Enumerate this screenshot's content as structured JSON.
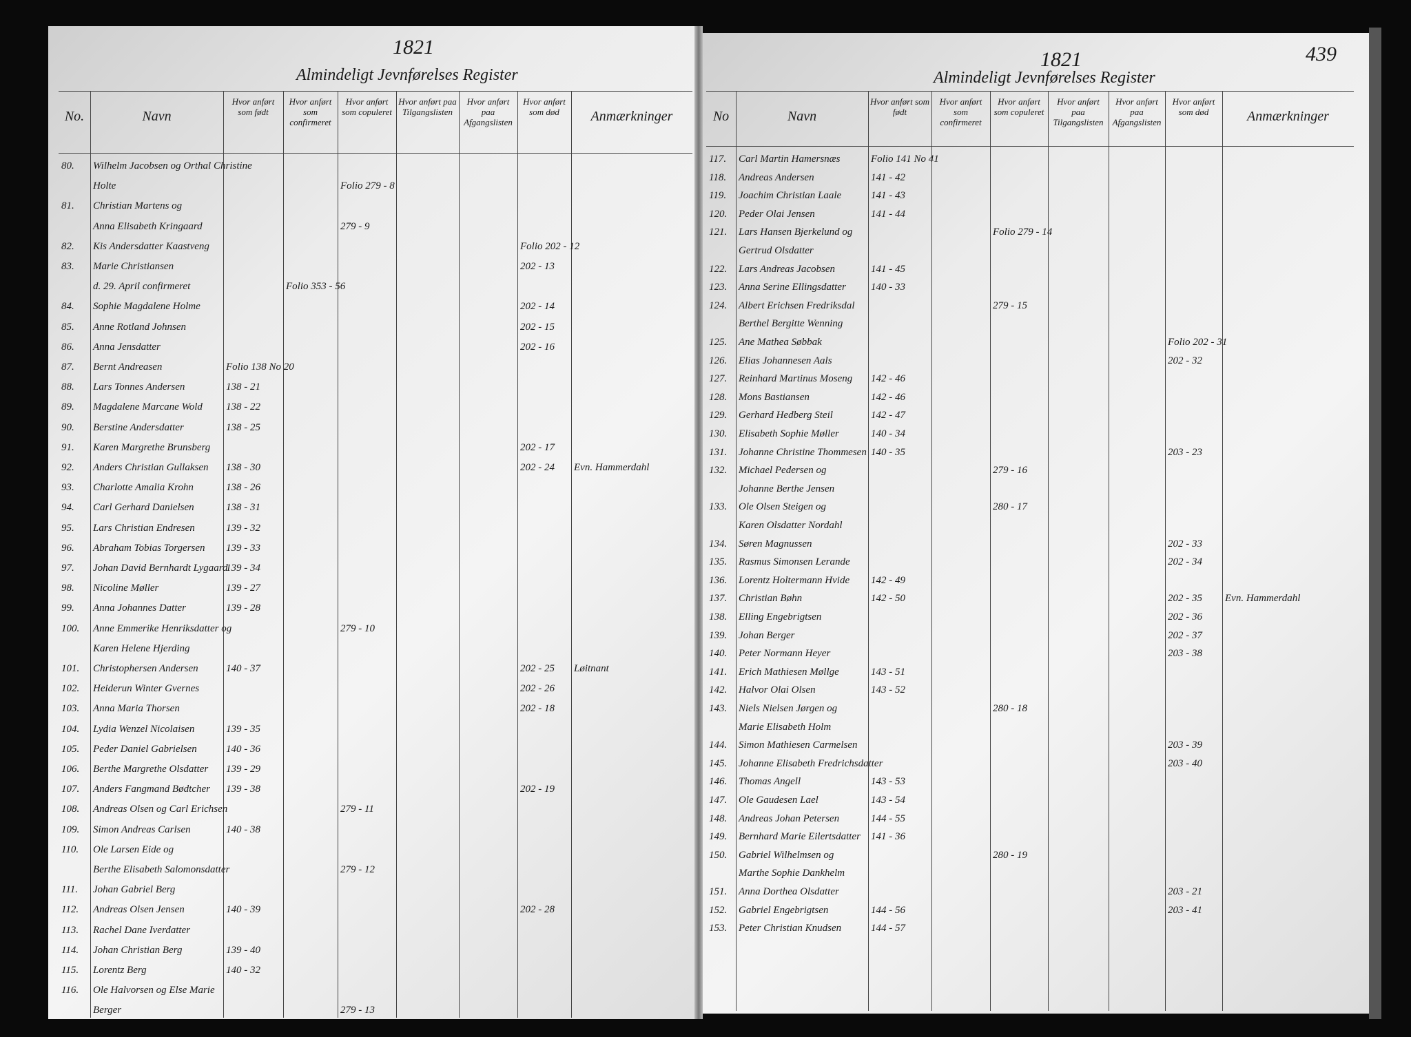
{
  "pages": [
    {
      "year": "1821",
      "title": "Almindeligt Jevnførelses Register",
      "headers": [
        "No.",
        "Navn",
        "Hvor anført som født",
        "Hvor anført som confirmeret",
        "Hvor anført som copuleret",
        "Hvor anført paa Tilgangslisten",
        "Hvor anført paa Afgangslisten",
        "Hvor anført som død",
        "Anmærkninger"
      ],
      "rows": [
        {
          "no": "80.",
          "name": "Wilhelm Jacobsen og Orthal Christine"
        },
        {
          "name": "Holte",
          "cop": "Folio 279 - 8"
        },
        {
          "no": "81.",
          "name": "Christian Martens og"
        },
        {
          "name": "Anna Elisabeth Kringaard",
          "cop": "279 - 9"
        },
        {
          "no": "82.",
          "name": "Kis Andersdatter Kaastveng",
          "dead": "Folio 202 - 12"
        },
        {
          "no": "83.",
          "name": "Marie Christiansen",
          "dead": "202 - 13"
        },
        {
          "name": "d. 29. April confirmeret",
          "conf": "Folio 353 - 56"
        },
        {
          "no": "84.",
          "name": "Sophie Magdalene Holme",
          "dead": "202 - 14"
        },
        {
          "no": "85.",
          "name": "Anne Rotland Johnsen",
          "dead": "202 - 15"
        },
        {
          "no": "86.",
          "name": "Anna Jensdatter",
          "dead": "202 - 16"
        },
        {
          "no": "87.",
          "name": "Bernt Andreasen",
          "born": "Folio 138 No 20"
        },
        {
          "no": "88.",
          "name": "Lars Tonnes Andersen",
          "born": "138 - 21"
        },
        {
          "no": "89.",
          "name": "Magdalene Marcane Wold",
          "born": "138 - 22"
        },
        {
          "no": "90.",
          "name": "Berstine Andersdatter",
          "born": "138 - 25"
        },
        {
          "no": "91.",
          "name": "Karen Margrethe Brunsberg",
          "dead": "202 - 17"
        },
        {
          "no": "92.",
          "name": "Anders Christian Gullaksen",
          "born": "138 - 30",
          "dead": "202 - 24",
          "note": "Evn. Hammerdahl"
        },
        {
          "no": "93.",
          "name": "Charlotte Amalia Krohn",
          "born": "138 - 26"
        },
        {
          "no": "94.",
          "name": "Carl Gerhard Danielsen",
          "born": "138 - 31"
        },
        {
          "no": "95.",
          "name": "Lars Christian Endresen",
          "born": "139 - 32"
        },
        {
          "no": "96.",
          "name": "Abraham Tobias Torgersen",
          "born": "139 - 33"
        },
        {
          "no": "97.",
          "name": "Johan David Bernhardt Lygaard",
          "born": "139 - 34"
        },
        {
          "no": "98.",
          "name": "Nicoline Møller",
          "born": "139 - 27"
        },
        {
          "no": "99.",
          "name": "Anna Johannes Datter",
          "born": "139 - 28"
        },
        {
          "no": "100.",
          "name": "Anne Emmerike Henriksdatter og",
          "cop": "279 - 10"
        },
        {
          "name": "Karen Helene Hjerding"
        },
        {
          "no": "101.",
          "name": "Christophersen Andersen",
          "born": "140 - 37",
          "dead": "202 - 25",
          "note": "Løitnant"
        },
        {
          "no": "102.",
          "name": "Heiderun Winter Gvernes",
          "dead": "202 - 26"
        },
        {
          "no": "103.",
          "name": "Anna Maria Thorsen",
          "dead": "202 - 18"
        },
        {
          "no": "104.",
          "name": "Lydia Wenzel Nicolaisen",
          "born": "139 - 35"
        },
        {
          "no": "105.",
          "name": "Peder Daniel Gabrielsen",
          "born": "140 - 36"
        },
        {
          "no": "106.",
          "name": "Berthe Margrethe Olsdatter",
          "born": "139 - 29"
        },
        {
          "no": "107.",
          "name": "Anders Fangmand Bødtcher",
          "born": "139 - 38",
          "dead": "202 - 19"
        },
        {
          "no": "108.",
          "name": "Andreas Olsen og Carl Erichsen",
          "cop": "279 - 11"
        },
        {
          "no": "109.",
          "name": "Simon Andreas Carlsen",
          "born": "140 - 38"
        },
        {
          "no": "110.",
          "name": "Ole Larsen Eide og"
        },
        {
          "name": "Berthe Elisabeth Salomonsdatter",
          "cop": "279 - 12"
        },
        {
          "no": "111.",
          "name": "Johan Gabriel Berg"
        },
        {
          "no": "112.",
          "name": "Andreas Olsen Jensen",
          "born": "140 - 39",
          "dead": "202 - 28"
        },
        {
          "no": "113.",
          "name": "Rachel Dane Iverdatter"
        },
        {
          "no": "114.",
          "name": "Johan Christian Berg",
          "born": "139 - 40"
        },
        {
          "no": "115.",
          "name": "Lorentz Berg",
          "born": "140 - 32"
        },
        {
          "no": "116.",
          "name": "Ole Halvorsen og Else Marie"
        },
        {
          "name": "Berger",
          "cop": "279 - 13"
        }
      ]
    },
    {
      "year": "1821",
      "title": "Almindeligt Jevnførelses Register",
      "page_number": "439",
      "headers": [
        "No",
        "Navn",
        "Hvor anført som født",
        "Hvor anført som confirmeret",
        "Hvor anført som copuleret",
        "Hvor anført paa Tilgangslisten",
        "Hvor anført paa Afgangslisten",
        "Hvor anført som død",
        "Anmærkninger"
      ],
      "rows": [
        {
          "no": "117.",
          "name": "Carl Martin Hamersnæs",
          "born": "Folio 141 No 41"
        },
        {
          "no": "118.",
          "name": "Andreas Andersen",
          "born": "141 - 42"
        },
        {
          "no": "119.",
          "name": "Joachim Christian Laale",
          "born": "141 - 43"
        },
        {
          "no": "120.",
          "name": "Peder Olai Jensen",
          "born": "141 - 44"
        },
        {
          "no": "121.",
          "name": "Lars Hansen Bjerkelund og",
          "cop": "Folio 279 - 14"
        },
        {
          "name": "Gertrud Olsdatter"
        },
        {
          "no": "122.",
          "name": "Lars Andreas Jacobsen",
          "born": "141 - 45"
        },
        {
          "no": "123.",
          "name": "Anna Serine Ellingsdatter",
          "born": "140 - 33"
        },
        {
          "no": "124.",
          "name": "Albert Erichsen Fredriksdal",
          "cop": "279 - 15"
        },
        {
          "name": "Berthel Bergitte Wenning"
        },
        {
          "no": "125.",
          "name": "Ane Mathea Søbbak",
          "dead": "Folio 202 - 31"
        },
        {
          "no": "126.",
          "name": "Elias Johannesen Aals",
          "dead": "202 - 32"
        },
        {
          "no": "127.",
          "name": "Reinhard Martinus Moseng",
          "born": "142 - 46"
        },
        {
          "no": "128.",
          "name": "Mons Bastiansen",
          "born": "142 - 46"
        },
        {
          "no": "129.",
          "name": "Gerhard Hedberg Steil",
          "born": "142 - 47"
        },
        {
          "no": "130.",
          "name": "Elisabeth Sophie Møller",
          "born": "140 - 34"
        },
        {
          "no": "131.",
          "name": "Johanne Christine Thommesen",
          "born": "140 - 35",
          "dead": "203 - 23"
        },
        {
          "no": "132.",
          "name": "Michael Pedersen og",
          "cop": "279 - 16"
        },
        {
          "name": "Johanne Berthe Jensen"
        },
        {
          "no": "133.",
          "name": "Ole Olsen Steigen og",
          "cop": "280 - 17"
        },
        {
          "name": "Karen Olsdatter Nordahl"
        },
        {
          "no": "134.",
          "name": "Søren Magnussen",
          "dead": "202 - 33"
        },
        {
          "no": "135.",
          "name": "Rasmus Simonsen Lerande",
          "dead": "202 - 34"
        },
        {
          "no": "136.",
          "name": "Lorentz Holtermann Hvide",
          "born": "142 - 49"
        },
        {
          "no": "137.",
          "name": "Christian Bøhn",
          "born": "142 - 50",
          "dead": "202 - 35",
          "note": "Evn. Hammerdahl"
        },
        {
          "no": "138.",
          "name": "Elling Engebrigtsen",
          "dead": "202 - 36"
        },
        {
          "no": "139.",
          "name": "Johan Berger",
          "dead": "202 - 37"
        },
        {
          "no": "140.",
          "name": "Peter Normann Heyer",
          "dead": "203 - 38"
        },
        {
          "no": "141.",
          "name": "Erich Mathiesen Møllge",
          "born": "143 - 51"
        },
        {
          "no": "142.",
          "name": "Halvor Olai Olsen",
          "born": "143 - 52"
        },
        {
          "no": "143.",
          "name": "Niels Nielsen Jørgen og",
          "cop": "280 - 18"
        },
        {
          "name": "Marie Elisabeth Holm"
        },
        {
          "no": "144.",
          "name": "Simon Mathiesen Carmelsen",
          "dead": "203 - 39"
        },
        {
          "no": "145.",
          "name": "Johanne Elisabeth Fredrichsdatter",
          "dead": "203 - 40"
        },
        {
          "no": "146.",
          "name": "Thomas Angell",
          "born": "143 - 53"
        },
        {
          "no": "147.",
          "name": "Ole Gaudesen Lael",
          "born": "143 - 54"
        },
        {
          "no": "148.",
          "name": "Andreas Johan Petersen",
          "born": "144 - 55"
        },
        {
          "no": "149.",
          "name": "Bernhard Marie Eilertsdatter",
          "born": "141 - 36"
        },
        {
          "no": "150.",
          "name": "Gabriel Wilhelmsen og",
          "cop": "280 - 19"
        },
        {
          "name": "Marthe Sophie Dankhelm"
        },
        {
          "no": "151.",
          "name": "Anna Dorthea Olsdatter",
          "dead": "203 - 21"
        },
        {
          "no": "152.",
          "name": "Gabriel Engebrigtsen",
          "born": "144 - 56",
          "dead": "203 - 41"
        },
        {
          "no": "153.",
          "name": "Peter Christian Knudsen",
          "born": "144 - 57"
        }
      ]
    }
  ]
}
